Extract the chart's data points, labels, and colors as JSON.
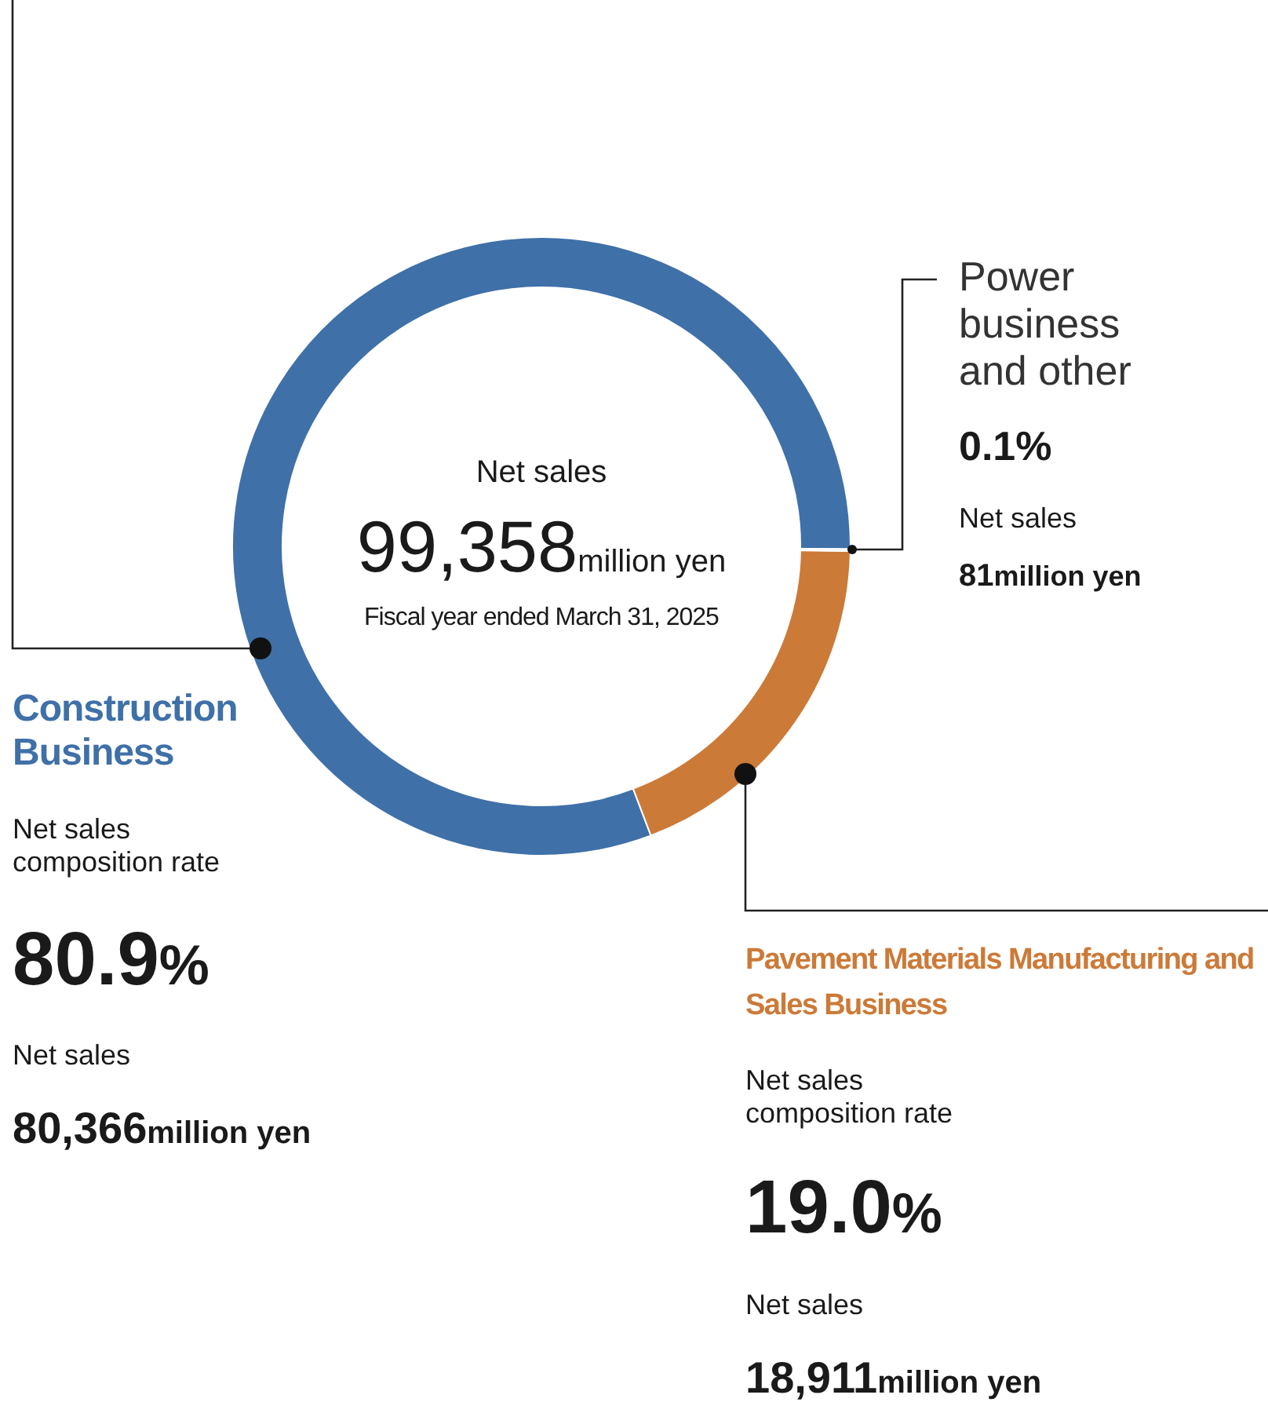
{
  "chart_data": {
    "type": "donut",
    "categories": [
      "Construction Business",
      "Pavement Materials Manufacturing and Sales Business",
      "Power business and other"
    ],
    "values": [
      80.9,
      19.0,
      0.1
    ],
    "colors": [
      "#3f70a8",
      "#cc7a38",
      "#e6e6e6"
    ],
    "annotations": [
      "Net sales",
      "99,358million yen",
      "Fiscal year ended March 31, 2025",
      "Net sales composition rate",
      "80.9%",
      "Net sales",
      "Net sales composition rate",
      "19.0%",
      "Net sales",
      "0.1%",
      "Net sales",
      "80,366million yen",
      "18,911million yen",
      "81million yen"
    ],
    "legend": false
  }
}
